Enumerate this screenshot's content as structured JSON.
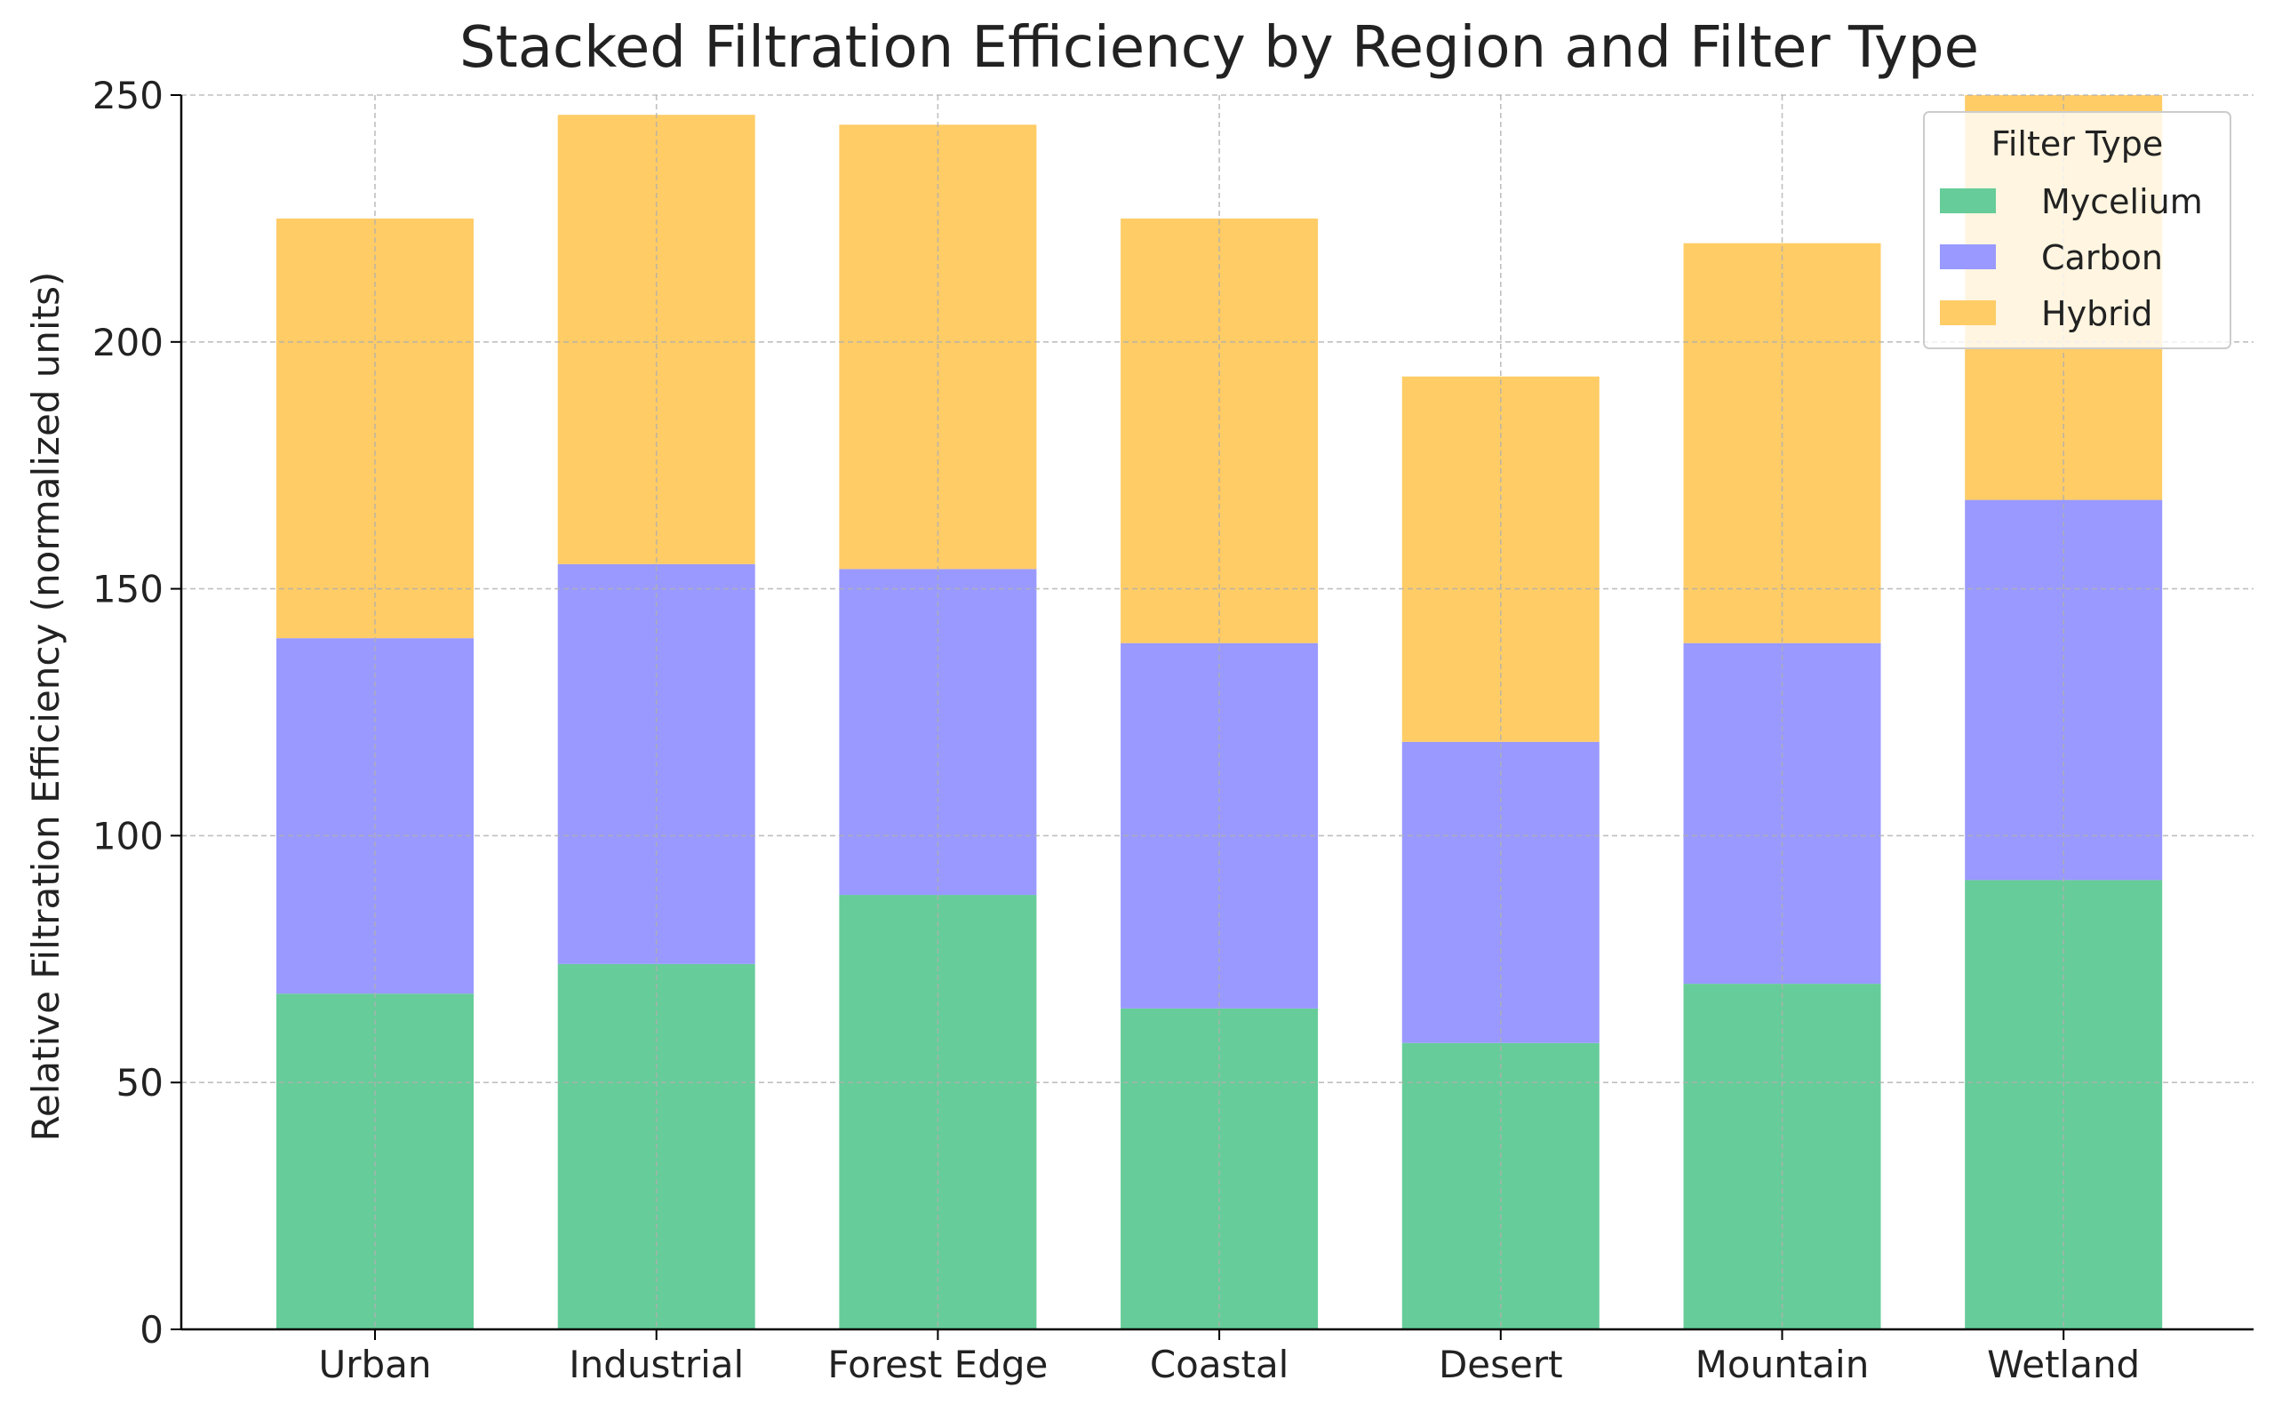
{
  "chart_data": {
    "type": "bar",
    "stacked": true,
    "title": "Stacked Filtration Efficiency by Region and Filter Type",
    "xlabel": "",
    "ylabel": "Relative Filtration Efficiency (normalized units)",
    "ylim": [
      0,
      250
    ],
    "yticks": [
      0,
      50,
      100,
      150,
      200,
      250
    ],
    "grid": true,
    "legend": {
      "title": "Filter Type",
      "placement": "top-right"
    },
    "categories": [
      "Urban",
      "Industrial",
      "Forest Edge",
      "Coastal",
      "Desert",
      "Mountain",
      "Wetland"
    ],
    "series": [
      {
        "name": "Mycelium",
        "color": "#66cc99",
        "values": [
          68,
          74,
          88,
          65,
          58,
          70,
          91
        ]
      },
      {
        "name": "Carbon",
        "color": "#9999ff",
        "values": [
          72,
          81,
          66,
          74,
          61,
          69,
          77
        ]
      },
      {
        "name": "Hybrid",
        "color": "#ffcc66",
        "values": [
          85,
          91,
          90,
          86,
          74,
          81,
          82
        ]
      }
    ]
  }
}
